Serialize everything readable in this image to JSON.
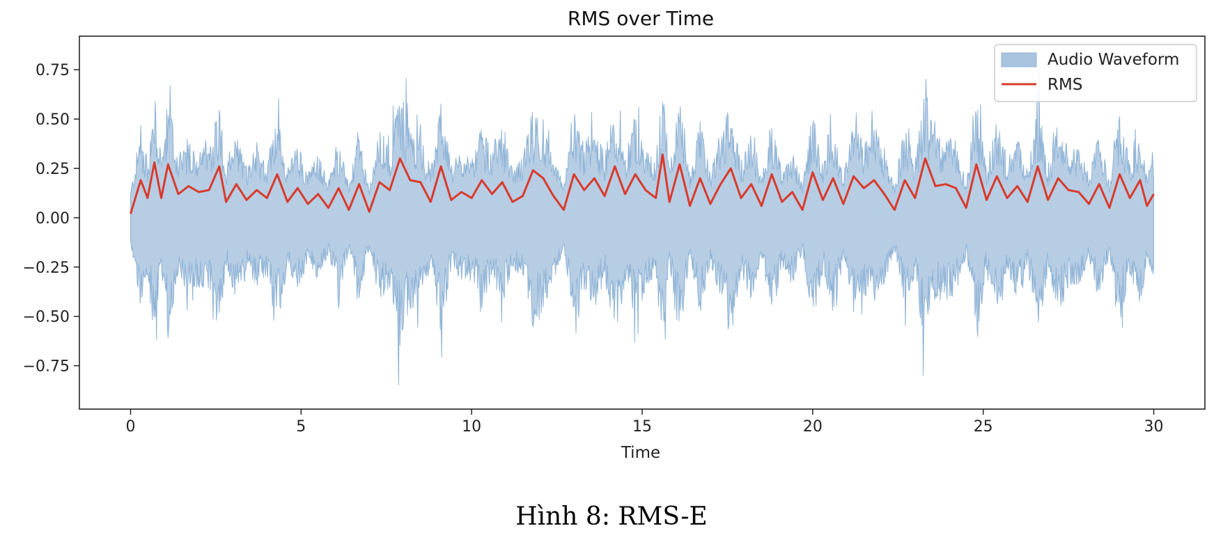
{
  "caption": "Hình 8: RMS-E",
  "colors": {
    "waveform": "#8fb3d6",
    "waveform_fill": "#a9c4df",
    "rms": "#d93a2b",
    "axes": "#222222"
  },
  "chart_data": {
    "type": "line",
    "title": "RMS over Time",
    "xlabel": "Time",
    "ylabel": "",
    "xlim": [
      -1.5,
      31.5
    ],
    "ylim": [
      -0.97,
      0.92
    ],
    "xticks": [
      0,
      5,
      10,
      15,
      20,
      25,
      30
    ],
    "xtick_labels": [
      "0",
      "5",
      "10",
      "15",
      "20",
      "25",
      "30"
    ],
    "yticks": [
      0.75,
      0.5,
      0.25,
      0.0,
      -0.25,
      -0.5,
      -0.75
    ],
    "ytick_labels": [
      "0.75",
      "0.50",
      "0.25",
      "0.00",
      "−0.25",
      "−0.50",
      "−0.75"
    ],
    "grid": false,
    "legend_position": "top-right",
    "series": [
      {
        "name": "Audio Waveform",
        "kind": "filled-waveform",
        "x_range": [
          0,
          30
        ],
        "amplitude_range": [
          -0.89,
          0.88
        ]
      },
      {
        "name": "RMS",
        "kind": "line",
        "x": [
          0.0,
          0.3,
          0.5,
          0.7,
          0.9,
          1.1,
          1.4,
          1.7,
          2.0,
          2.3,
          2.6,
          2.8,
          3.1,
          3.4,
          3.7,
          4.0,
          4.3,
          4.6,
          4.9,
          5.2,
          5.5,
          5.8,
          6.1,
          6.4,
          6.7,
          7.0,
          7.3,
          7.6,
          7.9,
          8.2,
          8.5,
          8.8,
          9.1,
          9.4,
          9.7,
          10.0,
          10.3,
          10.6,
          10.9,
          11.2,
          11.5,
          11.8,
          12.1,
          12.4,
          12.7,
          13.0,
          13.3,
          13.6,
          13.9,
          14.2,
          14.5,
          14.8,
          15.1,
          15.4,
          15.6,
          15.8,
          16.1,
          16.4,
          16.7,
          17.0,
          17.3,
          17.6,
          17.9,
          18.2,
          18.5,
          18.8,
          19.1,
          19.4,
          19.7,
          20.0,
          20.3,
          20.6,
          20.9,
          21.2,
          21.5,
          21.8,
          22.1,
          22.4,
          22.7,
          23.0,
          23.3,
          23.6,
          23.9,
          24.2,
          24.5,
          24.8,
          25.1,
          25.4,
          25.7,
          26.0,
          26.3,
          26.6,
          26.9,
          27.2,
          27.5,
          27.8,
          28.1,
          28.4,
          28.7,
          29.0,
          29.3,
          29.6,
          29.8,
          30.0
        ],
        "y": [
          0.02,
          0.19,
          0.1,
          0.28,
          0.1,
          0.27,
          0.12,
          0.16,
          0.13,
          0.14,
          0.26,
          0.08,
          0.17,
          0.09,
          0.14,
          0.1,
          0.22,
          0.08,
          0.15,
          0.07,
          0.12,
          0.05,
          0.15,
          0.04,
          0.17,
          0.03,
          0.18,
          0.14,
          0.3,
          0.19,
          0.18,
          0.08,
          0.26,
          0.09,
          0.13,
          0.1,
          0.19,
          0.12,
          0.18,
          0.08,
          0.11,
          0.24,
          0.2,
          0.11,
          0.04,
          0.22,
          0.14,
          0.2,
          0.11,
          0.26,
          0.12,
          0.22,
          0.14,
          0.1,
          0.32,
          0.08,
          0.27,
          0.06,
          0.2,
          0.07,
          0.17,
          0.25,
          0.1,
          0.17,
          0.06,
          0.22,
          0.08,
          0.13,
          0.04,
          0.23,
          0.09,
          0.2,
          0.07,
          0.21,
          0.15,
          0.19,
          0.12,
          0.04,
          0.19,
          0.1,
          0.3,
          0.16,
          0.17,
          0.15,
          0.05,
          0.27,
          0.09,
          0.21,
          0.1,
          0.16,
          0.08,
          0.26,
          0.09,
          0.2,
          0.14,
          0.13,
          0.07,
          0.17,
          0.05,
          0.22,
          0.1,
          0.19,
          0.06,
          0.12
        ]
      }
    ]
  }
}
